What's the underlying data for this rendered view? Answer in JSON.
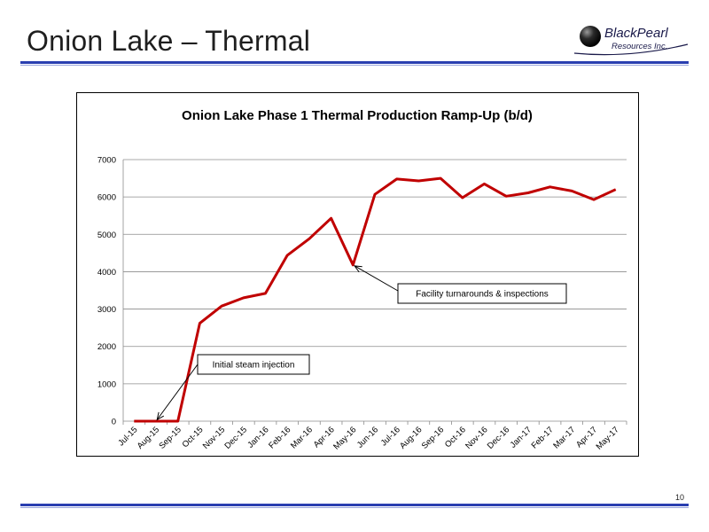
{
  "slide": {
    "title": "Onion Lake – Thermal",
    "page_number": "10",
    "accent_color": "#2a3fb0"
  },
  "logo": {
    "line1": "BlackPearl",
    "line2": "Resources Inc."
  },
  "chart_data": {
    "type": "line",
    "title": "Onion Lake Phase 1 Thermal Production Ramp-Up (b/d)",
    "xlabel": "",
    "ylabel": "",
    "ylim": [
      0,
      7000
    ],
    "yticks": [
      0,
      1000,
      2000,
      3000,
      4000,
      5000,
      6000,
      7000
    ],
    "grid": true,
    "line_color": "#c00000",
    "categories": [
      "Jul-15",
      "Aug-15",
      "Sep-15",
      "Oct-15",
      "Nov-15",
      "Dec-15",
      "Jan-16",
      "Feb-16",
      "Mar-16",
      "Apr-16",
      "May-16",
      "Jun-16",
      "Jul-16",
      "Aug-16",
      "Sep-16",
      "Oct-16",
      "Nov-16",
      "Dec-16",
      "Jan-17",
      "Feb-17",
      "Mar-17",
      "Apr-17",
      "May-17"
    ],
    "values": [
      0,
      0,
      0,
      2620,
      3080,
      3300,
      3420,
      4440,
      4880,
      5430,
      4180,
      6070,
      6480,
      6430,
      6500,
      5980,
      6350,
      6020,
      6110,
      6270,
      6160,
      5930,
      6200
    ],
    "annotations": [
      {
        "text": "Initial steam injection",
        "point_index": 1,
        "point_value": 0
      },
      {
        "text": "Facility turnarounds & inspections",
        "point_index": 10,
        "point_value": 4180
      }
    ]
  }
}
